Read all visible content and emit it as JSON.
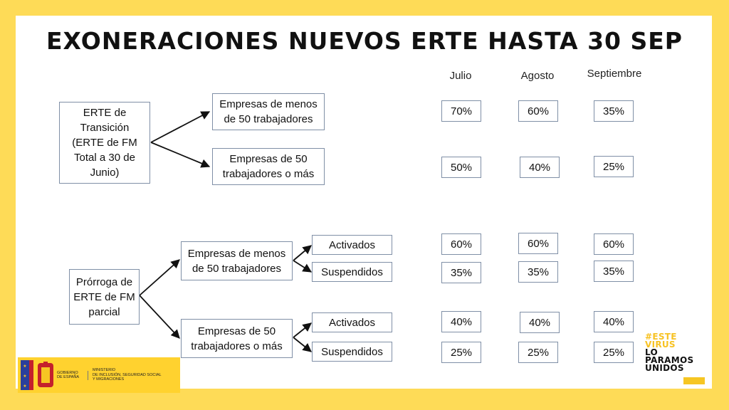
{
  "title": "EXONERACIONES NUEVOS ERTE HASTA 30 SEP",
  "columns": [
    "Julio",
    "Agosto",
    "Septiembre"
  ],
  "group1": {
    "root": "ERTE de\nTransición\n(ERTE de FM\nTotal a 30 de\nJunio)",
    "branches": [
      {
        "label": "Empresas de menos\nde 50 trabajadores",
        "values": [
          "70%",
          "60%",
          "35%"
        ]
      },
      {
        "label": "Empresas de 50\ntrabajadores o más",
        "values": [
          "50%",
          "40%",
          "25%"
        ]
      }
    ]
  },
  "group2": {
    "root": "Prórroga de\nERTE de FM\nparcial",
    "branches": [
      {
        "label": "Empresas de menos\nde 50 trabajadores",
        "sub": [
          {
            "label": "Activados",
            "values": [
              "60%",
              "60%",
              "60%"
            ]
          },
          {
            "label": "Suspendidos",
            "values": [
              "35%",
              "35%",
              "35%"
            ]
          }
        ]
      },
      {
        "label": "Empresas de 50\ntrabajadores o más",
        "sub": [
          {
            "label": "Activados",
            "values": [
              "40%",
              "40%",
              "40%"
            ]
          },
          {
            "label": "Suspendidos",
            "values": [
              "25%",
              "25%",
              "25%"
            ]
          }
        ]
      }
    ]
  },
  "logos": {
    "gobierno": "GOBIERNO\nDE ESPAÑA",
    "ministerio": "MINISTERIO\nDE INCLUSIÓN, SEGURIDAD SOCIAL\nY MIGRACIONES",
    "hashtag": [
      "#ESTE",
      "VIRUS",
      "LO",
      "PARAMOS",
      "UNIDOS"
    ]
  },
  "colors": {
    "background": "#fedb57",
    "box_border": "#7f8fa6",
    "arrow": "#111111"
  }
}
